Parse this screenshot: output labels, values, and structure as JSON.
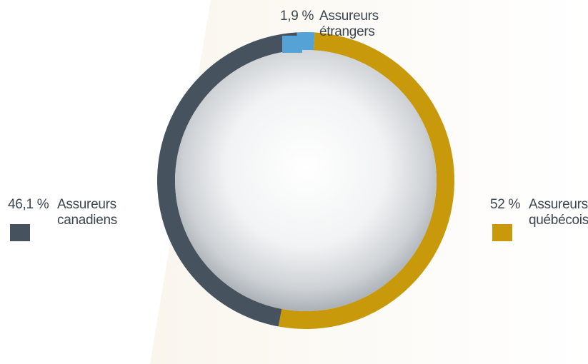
{
  "chart_data": {
    "type": "pie",
    "variant": "donut",
    "series": [
      {
        "label": "Assureurs québécois",
        "label_lines": [
          "Assureurs",
          "québécois"
        ],
        "value": 52,
        "value_text": "52 %",
        "color": "#c8990a"
      },
      {
        "label": "Assureurs canadiens",
        "label_lines": [
          "Assureurs",
          "canadiens"
        ],
        "value": 46.1,
        "value_text": "46,1 %",
        "color": "#46535e"
      },
      {
        "label": "Assureurs étrangers",
        "label_lines": [
          "Assureurs",
          "étrangers"
        ],
        "value": 1.9,
        "value_text": "1,9 %",
        "color": "#55a2d6"
      }
    ],
    "legend": "around"
  },
  "legend": {
    "quebec": {
      "pct": "52 %",
      "label": "Assureurs\nquébécois",
      "color": "#c8990a"
    },
    "canada": {
      "pct": "46,1 %",
      "label": "Assureurs\ncanadiens",
      "color": "#46535e"
    },
    "foreign": {
      "pct": "1,9 %",
      "label": "Assureurs\nétrangers",
      "color": "#55a2d6"
    }
  }
}
